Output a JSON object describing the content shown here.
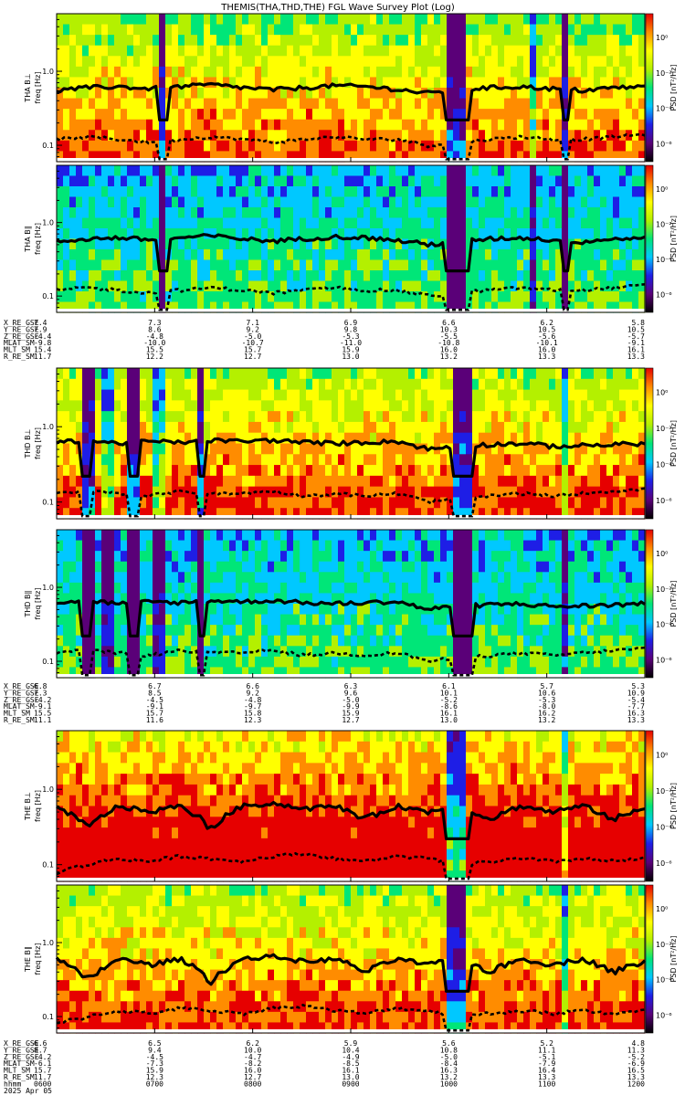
{
  "title": "THEMIS(THA,THD,THE) FGL Wave Survey Plot (Log)",
  "colorbar": {
    "label": "PSD [nT²/Hz]",
    "ticks": [
      "10⁰",
      "10⁻²",
      "10⁻⁴",
      "10⁻⁶"
    ],
    "colormap": [
      "#000000",
      "#5a0078",
      "#1e1ee6",
      "#00c8ff",
      "#00e678",
      "#b4f000",
      "#ffff00",
      "#ff8c00",
      "#e60000"
    ]
  },
  "chart_data": {
    "type": "heatmap",
    "x_axis": {
      "unit": "hhmm",
      "range": [
        "0600",
        "1200"
      ],
      "tick_labels": [
        "0600",
        "0700",
        "0800",
        "0900",
        "1000",
        "1100",
        "1200"
      ],
      "date": "2025 Apr 05"
    },
    "y_axis": {
      "scale": "log",
      "range_hz": [
        0.06,
        6.0
      ],
      "tick_labels": [
        "0.1",
        "1.0"
      ]
    },
    "panels": [
      {
        "id": "tha-bl",
        "probe": "tha",
        "label": "THA B⊥",
        "unit": "freq [Hz]",
        "activity": 1.0,
        "dropouts": [
          [
            0.17,
            0.19
          ],
          [
            0.66,
            0.7
          ],
          [
            0.86,
            0.87
          ]
        ],
        "dropouts_light": [
          [
            0.06,
            0.07
          ],
          [
            0.8,
            0.81
          ]
        ],
        "solid_line": [
          0.55,
          0.6,
          0.62,
          0.58,
          0.62,
          0.66,
          0.6,
          0.56,
          0.6,
          0.64,
          0.62,
          0.57,
          0.5,
          0.56,
          0.6,
          0.62,
          0.58,
          0.55,
          0.6,
          0.62
        ],
        "dashed_line": [
          0.12,
          0.13,
          0.12,
          0.11,
          0.12,
          0.13,
          0.12,
          0.11,
          0.12,
          0.13,
          0.12,
          0.12,
          0.1,
          0.11,
          0.12,
          0.13,
          0.12,
          0.12,
          0.13,
          0.14
        ]
      },
      {
        "id": "tha-bpar",
        "probe": "tha",
        "label": "THA B∥",
        "unit": "freq [Hz]",
        "activity": 0.6,
        "dropouts": [
          [
            0.17,
            0.19
          ],
          [
            0.66,
            0.7
          ],
          [
            0.86,
            0.87
          ]
        ],
        "dropouts_light": [
          [
            0.06,
            0.07
          ],
          [
            0.8,
            0.81
          ]
        ],
        "solid_line": [
          0.55,
          0.6,
          0.62,
          0.58,
          0.62,
          0.66,
          0.6,
          0.56,
          0.6,
          0.64,
          0.62,
          0.57,
          0.5,
          0.56,
          0.6,
          0.62,
          0.58,
          0.55,
          0.6,
          0.62
        ],
        "dashed_line": [
          0.12,
          0.13,
          0.12,
          0.11,
          0.12,
          0.13,
          0.12,
          0.11,
          0.12,
          0.13,
          0.12,
          0.12,
          0.1,
          0.11,
          0.12,
          0.13,
          0.12,
          0.12,
          0.13,
          0.14
        ]
      },
      {
        "id": "thd-bl",
        "probe": "thd",
        "label": "THD B⊥",
        "unit": "freq [Hz]",
        "activity": 1.05,
        "dropouts": [
          [
            0.04,
            0.06
          ],
          [
            0.12,
            0.14
          ],
          [
            0.24,
            0.25
          ],
          [
            0.67,
            0.71
          ]
        ],
        "dropouts_light": [
          [
            0.08,
            0.1
          ],
          [
            0.16,
            0.18
          ],
          [
            0.86,
            0.87
          ]
        ],
        "solid_line": [
          0.62,
          0.66,
          0.6,
          0.64,
          0.62,
          0.66,
          0.64,
          0.66,
          0.62,
          0.6,
          0.62,
          0.64,
          0.5,
          0.56,
          0.58,
          0.6,
          0.55,
          0.56,
          0.58,
          0.6
        ],
        "dashed_line": [
          0.13,
          0.14,
          0.13,
          0.12,
          0.14,
          0.13,
          0.13,
          0.14,
          0.12,
          0.13,
          0.12,
          0.13,
          0.1,
          0.11,
          0.12,
          0.13,
          0.12,
          0.13,
          0.14,
          0.15
        ]
      },
      {
        "id": "thd-bpar",
        "probe": "thd",
        "label": "THD B∥",
        "unit": "freq [Hz]",
        "activity": 0.6,
        "dropouts": [
          [
            0.04,
            0.06
          ],
          [
            0.12,
            0.14
          ],
          [
            0.24,
            0.25
          ],
          [
            0.67,
            0.71
          ]
        ],
        "dropouts_light": [
          [
            0.08,
            0.1
          ],
          [
            0.16,
            0.18
          ],
          [
            0.86,
            0.87
          ]
        ],
        "solid_line": [
          0.62,
          0.66,
          0.6,
          0.64,
          0.62,
          0.66,
          0.64,
          0.66,
          0.62,
          0.6,
          0.62,
          0.64,
          0.5,
          0.56,
          0.58,
          0.6,
          0.55,
          0.56,
          0.58,
          0.6
        ],
        "dashed_line": [
          0.13,
          0.14,
          0.13,
          0.12,
          0.14,
          0.13,
          0.13,
          0.14,
          0.12,
          0.13,
          0.12,
          0.13,
          0.1,
          0.11,
          0.12,
          0.13,
          0.12,
          0.13,
          0.14,
          0.15
        ]
      },
      {
        "id": "the-bl",
        "probe": "the",
        "label": "THE B⊥",
        "unit": "freq [Hz]",
        "activity": 1.25,
        "dropouts": [
          [
            0.66,
            0.7
          ]
        ],
        "dropouts_light": [
          [
            0.86,
            0.87
          ]
        ],
        "solid_line": [
          0.6,
          0.3,
          0.6,
          0.5,
          0.6,
          0.3,
          0.6,
          0.65,
          0.55,
          0.6,
          0.4,
          0.6,
          0.5,
          0.6,
          0.4,
          0.6,
          0.5,
          0.6,
          0.4,
          0.55
        ],
        "dashed_line": [
          0.08,
          0.1,
          0.12,
          0.11,
          0.13,
          0.12,
          0.11,
          0.13,
          0.14,
          0.12,
          0.11,
          0.13,
          0.12,
          0.1,
          0.11,
          0.12,
          0.11,
          0.12,
          0.11,
          0.12
        ]
      },
      {
        "id": "the-bpar",
        "probe": "the",
        "label": "THE B∥",
        "unit": "freq [Hz]",
        "activity": 1.05,
        "dropouts": [
          [
            0.66,
            0.7
          ]
        ],
        "dropouts_light": [
          [
            0.86,
            0.87
          ]
        ],
        "solid_line": [
          0.6,
          0.3,
          0.6,
          0.5,
          0.6,
          0.3,
          0.6,
          0.65,
          0.55,
          0.6,
          0.4,
          0.6,
          0.5,
          0.6,
          0.4,
          0.6,
          0.5,
          0.6,
          0.4,
          0.55
        ],
        "dashed_line": [
          0.08,
          0.1,
          0.12,
          0.11,
          0.13,
          0.12,
          0.11,
          0.13,
          0.14,
          0.12,
          0.11,
          0.13,
          0.12,
          0.1,
          0.11,
          0.12,
          0.11,
          0.12,
          0.11,
          0.12
        ]
      }
    ]
  },
  "ephemeris": [
    {
      "probe": "tha",
      "rows": [
        {
          "label": "X_RE_GSE",
          "values": [
            "7.4",
            "7.3",
            "7.1",
            "6.9",
            "6.6",
            "6.2",
            "5.8"
          ]
        },
        {
          "label": "Y_RE_GSE",
          "values": [
            "7.9",
            "8.6",
            "9.2",
            "9.8",
            "10.3",
            "10.5",
            "10.5"
          ]
        },
        {
          "label": "Z_RE_GSE",
          "values": [
            "-4.4",
            "-4.8",
            "-5.0",
            "-5.3",
            "-5.5",
            "-5.6",
            "-5.7"
          ]
        },
        {
          "label": "MLAT_SM",
          "values": [
            "-9.8",
            "-10.0",
            "-10.7",
            "-11.0",
            "-10.8",
            "-10.1",
            "-9.1"
          ]
        },
        {
          "label": "MLT_SM",
          "values": [
            "15.4",
            "15.5",
            "15.7",
            "15.9",
            "16.0",
            "16.0",
            "16.1"
          ]
        },
        {
          "label": "R_RE_SM",
          "values": [
            "11.7",
            "12.2",
            "12.7",
            "13.0",
            "13.2",
            "13.3",
            "13.3"
          ]
        }
      ]
    },
    {
      "probe": "thd",
      "rows": [
        {
          "label": "X_RE_GSE",
          "values": [
            "6.8",
            "6.7",
            "6.6",
            "6.3",
            "6.1",
            "5.7",
            "5.3"
          ]
        },
        {
          "label": "Y_RE_GSE",
          "values": [
            "7.3",
            "8.5",
            "9.2",
            "9.6",
            "10.1",
            "10.6",
            "10.9"
          ]
        },
        {
          "label": "Z_RE_GSE",
          "values": [
            "-4.2",
            "-4.5",
            "-4.8",
            "-5.0",
            "-5.2",
            "-5.3",
            "-5.4"
          ]
        },
        {
          "label": "MLAT_SM",
          "values": [
            "-9.1",
            "-9.1",
            "-9.7",
            "-9.9",
            "-8.6",
            "-8.0",
            "-7.7"
          ]
        },
        {
          "label": "MLT_SM",
          "values": [
            "15.5",
            "15.7",
            "15.8",
            "15.9",
            "16.1",
            "16.2",
            "16.3"
          ]
        },
        {
          "label": "R_RE_SM",
          "values": [
            "11.1",
            "11.6",
            "12.3",
            "12.7",
            "13.0",
            "13.2",
            "13.3"
          ]
        }
      ]
    },
    {
      "probe": "the",
      "rows": [
        {
          "label": "X_RE_GSE",
          "values": [
            "6.6",
            "6.5",
            "6.2",
            "5.9",
            "5.6",
            "5.2",
            "4.8"
          ]
        },
        {
          "label": "Y_RE_GSE",
          "values": [
            "8.7",
            "9.4",
            "10.0",
            "10.4",
            "10.8",
            "11.1",
            "11.3"
          ]
        },
        {
          "label": "Z_RE_GSE",
          "values": [
            "-4.2",
            "-4.5",
            "-4.7",
            "-4.9",
            "-5.0",
            "-5.1",
            "-5.2"
          ]
        },
        {
          "label": "MLAT_SM",
          "values": [
            "-6.1",
            "-7.3",
            "-8.2",
            "-8.5",
            "-8.4",
            "-7.9",
            "-6.9"
          ]
        },
        {
          "label": "MLT_SM",
          "values": [
            "15.7",
            "15.9",
            "16.0",
            "16.1",
            "16.3",
            "16.4",
            "16.5"
          ]
        },
        {
          "label": "R_RE_SM",
          "values": [
            "11.7",
            "12.3",
            "12.7",
            "13.0",
            "13.2",
            "13.3",
            "13.3"
          ]
        },
        {
          "label": "hhmm",
          "values": [
            "0600",
            "0700",
            "0800",
            "0900",
            "1000",
            "1100",
            "1200"
          ]
        },
        {
          "label": "2025 Apr 05",
          "values": []
        }
      ]
    }
  ]
}
